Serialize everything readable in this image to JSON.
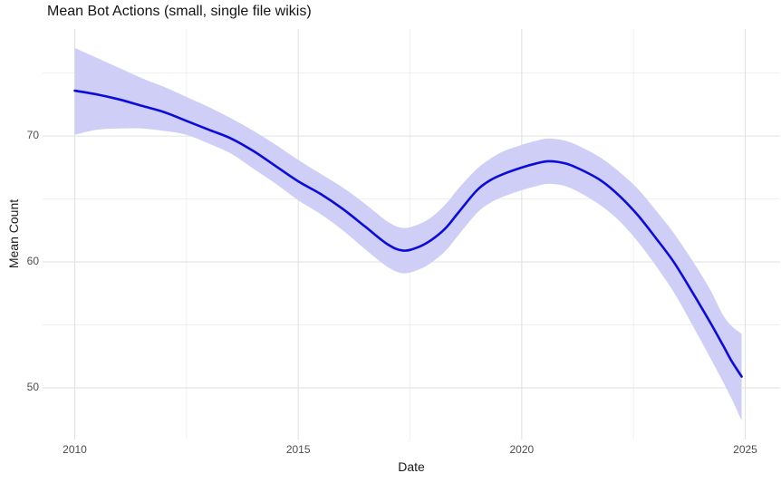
{
  "title": "Mean Bot Actions (small, single file wikis)",
  "chart_data": {
    "type": "line",
    "title": "Mean Bot Actions (small, single file wikis)",
    "xlabel": "Date",
    "ylabel": "Mean Count",
    "x_tick_labels": [
      "2010",
      "2015",
      "2020",
      "2025"
    ],
    "x_tick_values": [
      2010,
      2015,
      2020,
      2025
    ],
    "x_minor_ticks": [
      2012.5,
      2017.5,
      2022.5
    ],
    "y_tick_labels": [
      "70",
      "60",
      "50"
    ],
    "y_tick_values": [
      70,
      60,
      50
    ],
    "y_minor_ticks": [
      75,
      65,
      55
    ],
    "xlim": [
      2009.28,
      2025.78
    ],
    "ylim": [
      45.9,
      78.5
    ],
    "grid": "major-and-minor",
    "legend": false,
    "series": [
      {
        "name": "mean-bot-actions-smoothed",
        "style": "smooth-line-with-confidence-ribbon",
        "x": [
          2010,
          2010.5,
          2011,
          2011.5,
          2012,
          2012.5,
          2013,
          2013.5,
          2014,
          2014.5,
          2015,
          2015.5,
          2016,
          2016.5,
          2017,
          2017.35,
          2017.7,
          2018,
          2018.3,
          2018.6,
          2019,
          2019.3,
          2019.6,
          2020,
          2020.3,
          2020.6,
          2021,
          2021.4,
          2021.8,
          2022.2,
          2022.6,
          2023,
          2023.4,
          2023.8,
          2024.2,
          2024.5,
          2024.7,
          2024.92
        ],
        "y": [
          73.6,
          73.3,
          72.9,
          72.4,
          71.9,
          71.2,
          70.5,
          69.8,
          68.8,
          67.6,
          66.4,
          65.4,
          64.2,
          62.8,
          61.4,
          60.9,
          61.2,
          61.8,
          62.7,
          64.0,
          65.7,
          66.5,
          67.0,
          67.5,
          67.8,
          68.0,
          67.8,
          67.2,
          66.4,
          65.2,
          63.7,
          61.9,
          60.0,
          57.7,
          55.3,
          53.4,
          52.1,
          50.9
        ],
        "ci_lower": [
          70.1,
          70.5,
          70.6,
          70.6,
          70.4,
          70.1,
          69.4,
          68.6,
          67.4,
          66.2,
          64.9,
          63.8,
          62.5,
          61.0,
          59.6,
          59.1,
          59.4,
          60.0,
          60.9,
          62.2,
          63.9,
          64.7,
          65.2,
          65.7,
          66.0,
          66.2,
          66.0,
          65.3,
          64.4,
          63.2,
          61.6,
          59.7,
          57.6,
          55.1,
          52.5,
          50.5,
          49.1,
          47.4
        ],
        "ci_upper": [
          77.0,
          76.2,
          75.4,
          74.6,
          73.9,
          73.1,
          72.3,
          71.4,
          70.4,
          69.3,
          68.1,
          67.0,
          65.9,
          64.6,
          63.2,
          62.7,
          63.0,
          63.6,
          64.6,
          65.9,
          67.4,
          68.2,
          68.8,
          69.3,
          69.6,
          69.8,
          69.6,
          69.0,
          68.2,
          67.1,
          65.8,
          64.1,
          62.3,
          60.2,
          57.9,
          55.8,
          54.9,
          54.3
        ]
      }
    ],
    "colors": {
      "line": "#0b0bdb",
      "ribbon": "#cecef6",
      "grid_major": "#e2e2e2",
      "grid_minor": "#ececec",
      "tick_label": "#4d4d4d",
      "title_text": "#141414",
      "axis_title_text": "#1a1a1a",
      "background": "#ffffff"
    }
  }
}
